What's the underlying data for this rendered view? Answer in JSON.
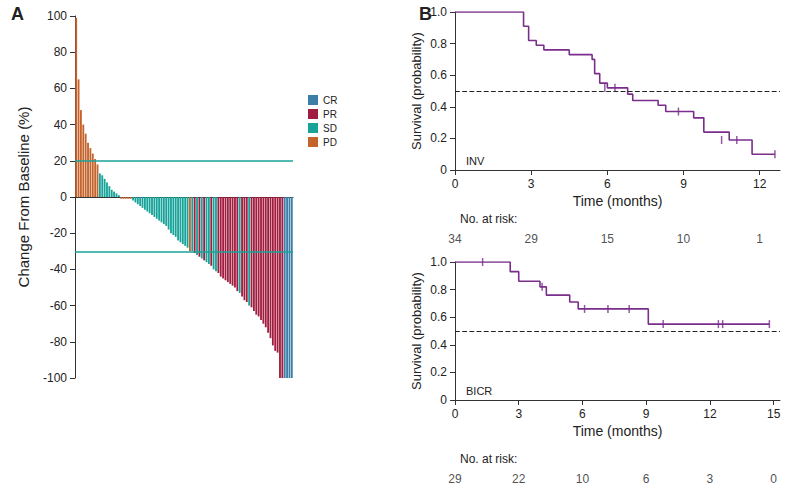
{
  "chart_data": [
    {
      "type": "bar",
      "title": "A",
      "ylabel": "Change From Baseline (%)",
      "categories": [
        null,
        null,
        null,
        null,
        null,
        null,
        null,
        null,
        null,
        null,
        null,
        null,
        null,
        null,
        null,
        null,
        null,
        null,
        null,
        null,
        null,
        null,
        null,
        null,
        null,
        null,
        null,
        null,
        null,
        null,
        null,
        null,
        null,
        null,
        null,
        null,
        null,
        null,
        null,
        null,
        null,
        null,
        null,
        null,
        null,
        null,
        null,
        null,
        null,
        null,
        null,
        null,
        null,
        null,
        null,
        null,
        null,
        null,
        null,
        null,
        null,
        null,
        null,
        null,
        null,
        null,
        null,
        null,
        null,
        null,
        null,
        null,
        null,
        null,
        null,
        null,
        null,
        null,
        null,
        null,
        null,
        null,
        null,
        null,
        null,
        null,
        null,
        null,
        null,
        null,
        null,
        null
      ],
      "series": [
        {
          "name": "CR",
          "color": "#3b7ea8",
          "values": [
            null,
            null,
            null,
            null,
            null,
            null,
            null,
            null,
            null,
            null,
            null,
            null,
            null,
            null,
            null,
            null,
            null,
            null,
            null,
            null,
            null,
            null,
            null,
            null,
            null,
            null,
            null,
            null,
            null,
            null,
            null,
            null,
            null,
            null,
            null,
            null,
            null,
            null,
            null,
            null,
            null,
            null,
            null,
            null,
            null,
            null,
            null,
            null,
            null,
            null,
            null,
            null,
            null,
            null,
            null,
            null,
            null,
            null,
            null,
            null,
            null,
            null,
            null,
            null,
            null,
            null,
            null,
            null,
            null,
            null,
            null,
            null,
            null,
            null,
            null,
            null,
            null,
            null,
            null,
            null,
            null,
            null,
            null,
            null,
            null,
            null,
            null,
            null,
            -100,
            -100,
            -100,
            -100
          ]
        },
        {
          "name": "PR",
          "color": "#a11d3f",
          "values": [
            null,
            null,
            null,
            null,
            null,
            null,
            null,
            null,
            null,
            null,
            null,
            null,
            null,
            null,
            null,
            null,
            null,
            null,
            null,
            null,
            null,
            null,
            null,
            null,
            null,
            null,
            null,
            null,
            null,
            null,
            null,
            null,
            null,
            null,
            null,
            null,
            null,
            null,
            null,
            null,
            null,
            null,
            null,
            null,
            null,
            null,
            null,
            null,
            null,
            null,
            -31,
            null,
            -33,
            null,
            -35,
            null,
            null,
            -38,
            null,
            null,
            -42,
            -44,
            -45,
            -46,
            -47,
            -48,
            -49,
            -50,
            -52,
            null,
            -55,
            -57,
            -58,
            null,
            -61,
            -63,
            -65,
            -66,
            -68,
            -70,
            -72,
            -75,
            -78,
            -82,
            -85,
            -86,
            -100,
            -100,
            null,
            null,
            null,
            null
          ]
        },
        {
          "name": "SD",
          "color": "#17a39a",
          "values": [
            null,
            null,
            null,
            null,
            null,
            null,
            null,
            null,
            null,
            null,
            13,
            12,
            10,
            8,
            6,
            4,
            3,
            2,
            1,
            null,
            null,
            null,
            null,
            null,
            -2,
            -3,
            -4,
            -5,
            -6,
            -7,
            -8,
            -9,
            -10,
            -11,
            -12,
            -13,
            -14,
            -15,
            -16,
            -18,
            -20,
            -21,
            -22,
            -24,
            -25,
            -26,
            -27,
            -28,
            null,
            -30,
            null,
            -32,
            null,
            -34,
            null,
            -36,
            -37,
            null,
            -40,
            -41,
            null,
            null,
            null,
            null,
            null,
            null,
            null,
            null,
            null,
            -53,
            null,
            null,
            null,
            -60,
            null,
            null,
            null,
            null,
            null,
            null,
            null,
            null,
            null,
            null,
            null,
            null,
            null,
            null,
            null,
            null,
            null,
            null
          ]
        },
        {
          "name": "PD",
          "color": "#c4632c",
          "values": [
            99,
            65,
            48,
            40,
            35,
            30,
            27,
            24,
            21,
            18,
            null,
            null,
            null,
            null,
            null,
            null,
            null,
            null,
            null,
            -1,
            -1,
            -1,
            -1,
            -1,
            null,
            null,
            null,
            null,
            null,
            null,
            null,
            null,
            null,
            null,
            null,
            null,
            null,
            null,
            null,
            null,
            null,
            null,
            null,
            null,
            null,
            null,
            null,
            null,
            -30,
            null,
            null,
            null,
            null,
            null,
            null,
            null,
            null,
            null,
            null,
            null,
            null,
            null,
            null,
            null,
            null,
            null,
            null,
            null,
            null,
            null,
            null,
            null,
            null,
            null,
            null,
            null,
            null,
            null,
            null,
            null,
            null,
            null,
            null,
            null,
            null,
            null,
            null,
            null,
            null,
            null,
            null,
            null
          ]
        }
      ],
      "reference_lines": [
        20,
        -30
      ],
      "ylim": [
        -100,
        100
      ],
      "yticks": [
        -100,
        -80,
        -60,
        -40,
        -20,
        0,
        20,
        40,
        60,
        80,
        100
      ],
      "grid": false,
      "legend": "upper right",
      "tick_labels": "y"
    },
    {
      "type": "line",
      "title": "B",
      "annotation": "INV",
      "line_style": "step",
      "color": "#7a2e8c",
      "xlabel": "Time (months)",
      "ylabel": "Survival (probability)",
      "x": [
        0,
        2.7,
        2.9,
        3.2,
        3.5,
        4.5,
        5.4,
        5.5,
        5.7,
        6.0,
        6.8,
        7.0,
        8.0,
        8.3,
        9.4,
        9.8,
        10.8,
        11.7,
        12.6
      ],
      "values": [
        1,
        0.91,
        0.82,
        0.79,
        0.76,
        0.73,
        0.7,
        0.61,
        0.55,
        0.52,
        0.48,
        0.44,
        0.41,
        0.37,
        0.33,
        0.24,
        0.19,
        0.1,
        0.1
      ],
      "censored_x": [
        5.9,
        6.3,
        8.8,
        10.5,
        11.1,
        12.6
      ],
      "censored_y": [
        0.52,
        0.52,
        0.37,
        0.19,
        0.19,
        0.1
      ],
      "reference_lines": [
        0.5
      ],
      "at_risk_label": "No. at risk:",
      "at_risk_x": [
        0,
        3,
        6,
        9,
        12
      ],
      "at_risk": [
        34,
        29,
        15,
        10,
        1
      ],
      "xlim": [
        0,
        12.8
      ],
      "xticks": [
        0,
        3,
        6,
        9,
        12
      ],
      "ylim": [
        0,
        1
      ],
      "yticks": [
        0,
        0.2,
        0.4,
        0.6,
        0.8,
        {
          "value": 1,
          "label": "1.0"
        }
      ],
      "grid": false
    },
    {
      "type": "line",
      "annotation": "BICR",
      "line_style": "step",
      "color": "#7a2e8c",
      "xlabel": "Time (months)",
      "ylabel": "Survival (probability)",
      "x": [
        0,
        2.6,
        3.0,
        4.0,
        4.3,
        5.4,
        5.8,
        9.1,
        14.8
      ],
      "values": [
        1,
        0.93,
        0.86,
        0.82,
        0.76,
        0.71,
        0.66,
        0.55,
        0.55
      ],
      "censored_x": [
        1.3,
        4.1,
        6.1,
        7.2,
        8.2,
        9.8,
        12.4,
        12.6,
        14.8
      ],
      "censored_y": [
        1,
        0.82,
        0.66,
        0.66,
        0.66,
        0.55,
        0.55,
        0.55,
        0.55
      ],
      "reference_lines": [
        0.5
      ],
      "at_risk_label": "No. at risk:",
      "at_risk_x": [
        0,
        3,
        6,
        9,
        12,
        15
      ],
      "at_risk": [
        29,
        22,
        10,
        6,
        3,
        0
      ],
      "xlim": [
        0,
        15.3
      ],
      "xticks": [
        0,
        3,
        6,
        9,
        12,
        15
      ],
      "ylim": [
        0,
        1
      ],
      "yticks": [
        0,
        0.2,
        0.4,
        0.6,
        0.8,
        {
          "value": 1,
          "label": "1.0"
        }
      ],
      "grid": false
    }
  ]
}
